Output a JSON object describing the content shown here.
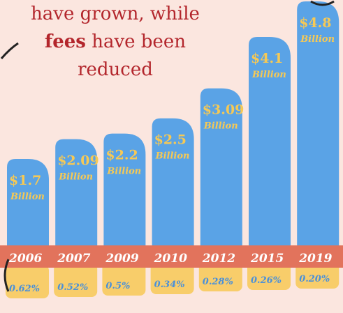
{
  "caption": {
    "line1": "have grown, while",
    "line2_bold": "fees",
    "line2_rest": " have been",
    "line3": "reduced"
  },
  "colors": {
    "background": "#fbe6df",
    "bar": "#5aa3e6",
    "value_text": "#f6c955",
    "year_band": "#e2735c",
    "year_text": "#ffffff",
    "fee_box": "#f8cd6a",
    "fee_text": "#4a90d9",
    "caption_text": "#b3262c"
  },
  "chart_data": {
    "type": "bar",
    "categories": [
      "2006",
      "2007",
      "2009",
      "2010",
      "2012",
      "2015",
      "2019"
    ],
    "series": [
      {
        "values": [
          1.7,
          2.09,
          2.2,
          2.5,
          3.09,
          4.1,
          4.8
        ],
        "value_labels": [
          "$1.7",
          "$2.09",
          "$2.2",
          "$2.5",
          "$3.09",
          "$4.1",
          "$4.8"
        ],
        "unit_label": "Billion"
      }
    ],
    "fees": [
      "0.62%",
      "0.52%",
      "0.5%",
      "0.34%",
      "0.28%",
      "0.26%",
      "0.20%"
    ],
    "year_labels": [
      "2006",
      "2007",
      "2009",
      "2010",
      "2012",
      "2015",
      "2019"
    ]
  }
}
